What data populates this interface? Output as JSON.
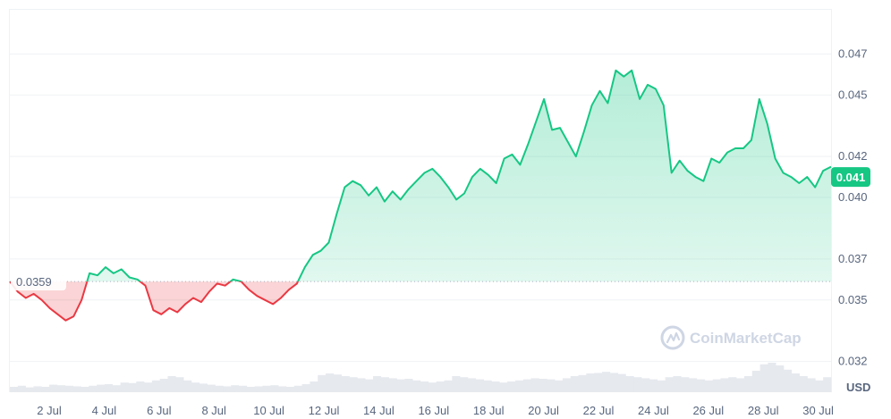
{
  "chart_data": {
    "type": "area",
    "x_ticks": [
      "2 Jul",
      "4 Jul",
      "6 Jul",
      "8 Jul",
      "10 Jul",
      "12 Jul",
      "14 Jul",
      "16 Jul",
      "18 Jul",
      "20 Jul",
      "22 Jul",
      "24 Jul",
      "26 Jul",
      "28 Jul",
      "30 Jul"
    ],
    "y_ticks": [
      "0.047",
      "0.045",
      "0.042",
      "0.040",
      "0.037",
      "0.035",
      "0.032"
    ],
    "ylim": [
      0.0305,
      0.0492
    ],
    "baseline_value": 0.0359,
    "baseline_label": "0.0359",
    "current_value": 0.041,
    "current_label": "0.041",
    "unit_label": "USD",
    "watermark": "CoinMarketCap",
    "colors": {
      "up": "#16c784",
      "down": "#ea3943",
      "grid": "#eff2f5",
      "current_badge": "#16c784"
    },
    "series": [
      {
        "values": [
          0.0359,
          0.0354,
          0.0351,
          0.0353,
          0.035,
          0.0346,
          0.0343,
          0.034,
          0.0342,
          0.035,
          0.0363,
          0.0362,
          0.0366,
          0.0363,
          0.0365,
          0.0361,
          0.036,
          0.0357,
          0.0345,
          0.0343,
          0.0346,
          0.0344,
          0.0348,
          0.0351,
          0.0349,
          0.0354,
          0.0358,
          0.0357,
          0.036,
          0.0359,
          0.0355,
          0.0352,
          0.035,
          0.0348,
          0.0351,
          0.0355,
          0.0358,
          0.0366,
          0.0372,
          0.0374,
          0.0378,
          0.0392,
          0.0405,
          0.0408,
          0.0406,
          0.0401,
          0.0405,
          0.0398,
          0.0403,
          0.0399,
          0.0404,
          0.0408,
          0.0412,
          0.0414,
          0.041,
          0.0405,
          0.0399,
          0.0402,
          0.041,
          0.0414,
          0.0411,
          0.0407,
          0.0419,
          0.0421,
          0.0416,
          0.0426,
          0.0437,
          0.0448,
          0.0433,
          0.0434,
          0.0427,
          0.042,
          0.0432,
          0.0445,
          0.0452,
          0.0446,
          0.0462,
          0.0459,
          0.0462,
          0.0448,
          0.0455,
          0.0453,
          0.0445,
          0.0412,
          0.0418,
          0.0413,
          0.041,
          0.0408,
          0.0419,
          0.0417,
          0.0422,
          0.0424,
          0.0424,
          0.0428,
          0.0448,
          0.0436,
          0.0419,
          0.0412,
          0.041,
          0.0407,
          0.041,
          0.0405,
          0.0413,
          0.0415
        ]
      }
    ],
    "volume": [
      0.1,
      0.12,
      0.09,
      0.11,
      0.1,
      0.14,
      0.13,
      0.12,
      0.11,
      0.1,
      0.12,
      0.14,
      0.15,
      0.13,
      0.18,
      0.17,
      0.2,
      0.18,
      0.22,
      0.25,
      0.3,
      0.28,
      0.22,
      0.18,
      0.16,
      0.14,
      0.12,
      0.11,
      0.13,
      0.12,
      0.1,
      0.11,
      0.12,
      0.13,
      0.11,
      0.1,
      0.12,
      0.15,
      0.2,
      0.32,
      0.35,
      0.33,
      0.3,
      0.28,
      0.26,
      0.24,
      0.3,
      0.28,
      0.26,
      0.24,
      0.25,
      0.22,
      0.2,
      0.18,
      0.2,
      0.22,
      0.3,
      0.28,
      0.26,
      0.24,
      0.22,
      0.2,
      0.18,
      0.2,
      0.22,
      0.24,
      0.26,
      0.25,
      0.24,
      0.22,
      0.26,
      0.3,
      0.32,
      0.35,
      0.36,
      0.38,
      0.36,
      0.34,
      0.3,
      0.28,
      0.26,
      0.24,
      0.22,
      0.28,
      0.3,
      0.28,
      0.26,
      0.24,
      0.22,
      0.24,
      0.26,
      0.28,
      0.26,
      0.3,
      0.4,
      0.52,
      0.55,
      0.5,
      0.42,
      0.35,
      0.3,
      0.26,
      0.22,
      0.28
    ]
  }
}
